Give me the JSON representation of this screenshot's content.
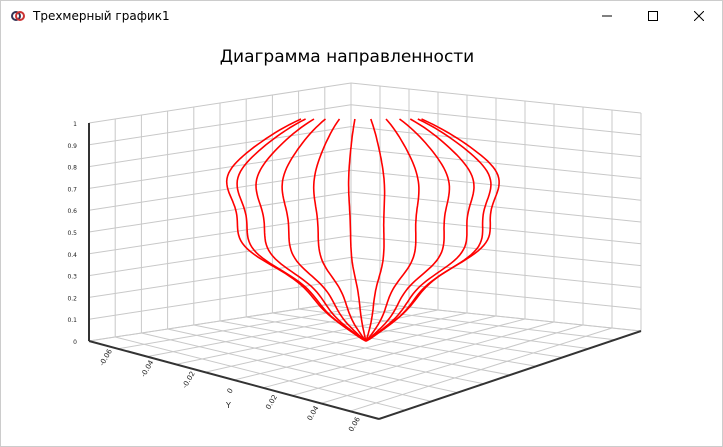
{
  "window": {
    "title": "Трехмерный график1"
  },
  "plot": {
    "title": "Диаграмма направленности",
    "z_ticks": [
      "0",
      "0.1",
      "0.2",
      "0.3",
      "0.4",
      "0.5",
      "0.6",
      "0.7",
      "0.8",
      "0.9",
      "1"
    ],
    "y_ticks": [
      "-0.06",
      "-0.04",
      "-0.02",
      "0",
      "0.02",
      "0.04",
      "0.06"
    ],
    "y_label": "Y"
  }
}
